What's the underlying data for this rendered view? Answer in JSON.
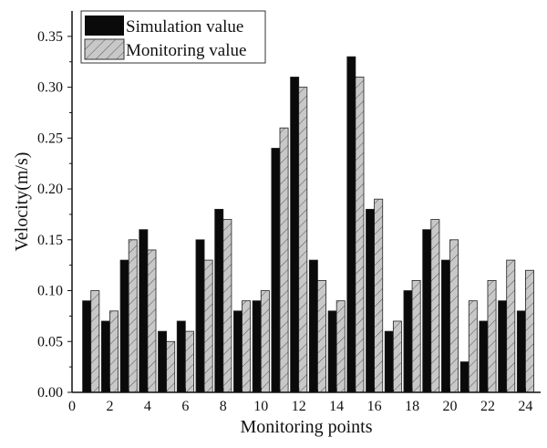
{
  "chart_data": {
    "type": "bar",
    "title": "",
    "xlabel": "Monitoring points",
    "ylabel": "Velocity(m/s)",
    "xlim": [
      0,
      24.8
    ],
    "ylim": [
      0,
      0.375
    ],
    "xticks": [
      "0",
      "2",
      "4",
      "6",
      "8",
      "10",
      "12",
      "14",
      "16",
      "18",
      "20",
      "22",
      "24"
    ],
    "yticks": [
      "0.00",
      "0.05",
      "0.10",
      "0.15",
      "0.20",
      "0.25",
      "0.30",
      "0.35"
    ],
    "legend_position": "top-left",
    "categories": [
      1,
      2,
      3,
      4,
      5,
      6,
      7,
      8,
      9,
      10,
      11,
      12,
      13,
      14,
      15,
      16,
      17,
      18,
      19,
      20,
      21,
      22,
      23,
      24
    ],
    "series": [
      {
        "name": "Simulation value",
        "color": "#0a0a0a",
        "pattern": "solid",
        "values": [
          0.09,
          0.07,
          0.13,
          0.16,
          0.06,
          0.07,
          0.15,
          0.18,
          0.08,
          0.09,
          0.24,
          0.31,
          0.13,
          0.08,
          0.33,
          0.18,
          0.06,
          0.1,
          0.16,
          0.13,
          0.03,
          0.07,
          0.09,
          0.08
        ]
      },
      {
        "name": "Monitoring value",
        "color": "#c8c8c8",
        "pattern": "hatched",
        "values": [
          0.1,
          0.08,
          0.15,
          0.14,
          0.05,
          0.06,
          0.13,
          0.17,
          0.09,
          0.1,
          0.26,
          0.3,
          0.11,
          0.09,
          0.31,
          0.19,
          0.07,
          0.11,
          0.17,
          0.15,
          0.09,
          0.11,
          0.13,
          0.12
        ]
      }
    ]
  }
}
